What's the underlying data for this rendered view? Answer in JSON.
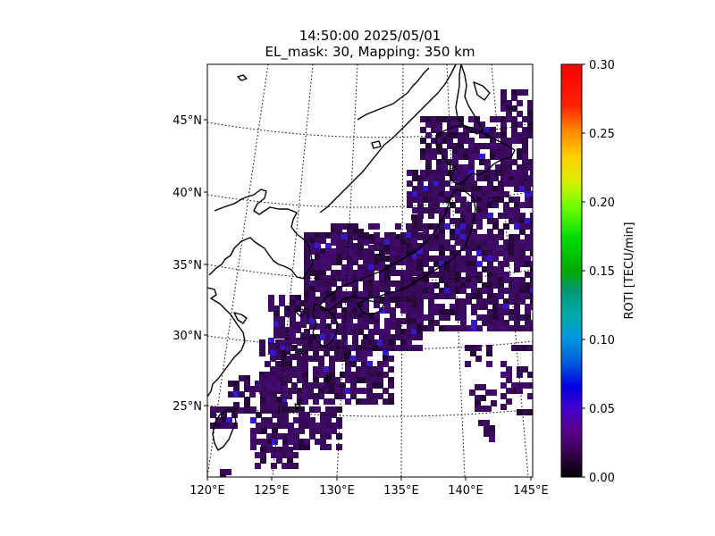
{
  "title": {
    "line1": "14:50:00 2025/05/01",
    "line2": "EL_mask: 30, Mapping: 350 km"
  },
  "map": {
    "lon_range": [
      120,
      145
    ],
    "lat_range": [
      20,
      49
    ],
    "lon_ticks": [
      "120°E",
      "125°E",
      "130°E",
      "135°E",
      "140°E",
      "145°E"
    ],
    "lat_ticks": [
      "25°N",
      "30°N",
      "35°N",
      "40°N",
      "45°N"
    ],
    "graticule": "dotted",
    "coastlines": true
  },
  "colorbar": {
    "label": "ROTI [TECU/min]",
    "ticks": [
      "0.00",
      "0.05",
      "0.10",
      "0.15",
      "0.20",
      "0.25",
      "0.30"
    ],
    "range": [
      0,
      0.3
    ],
    "colormap": "nipy_spectral"
  },
  "colors": {
    "roti_dominant": "#3a0a5e",
    "roti_low": "#250838",
    "roti_blue": "#3518c8"
  }
}
